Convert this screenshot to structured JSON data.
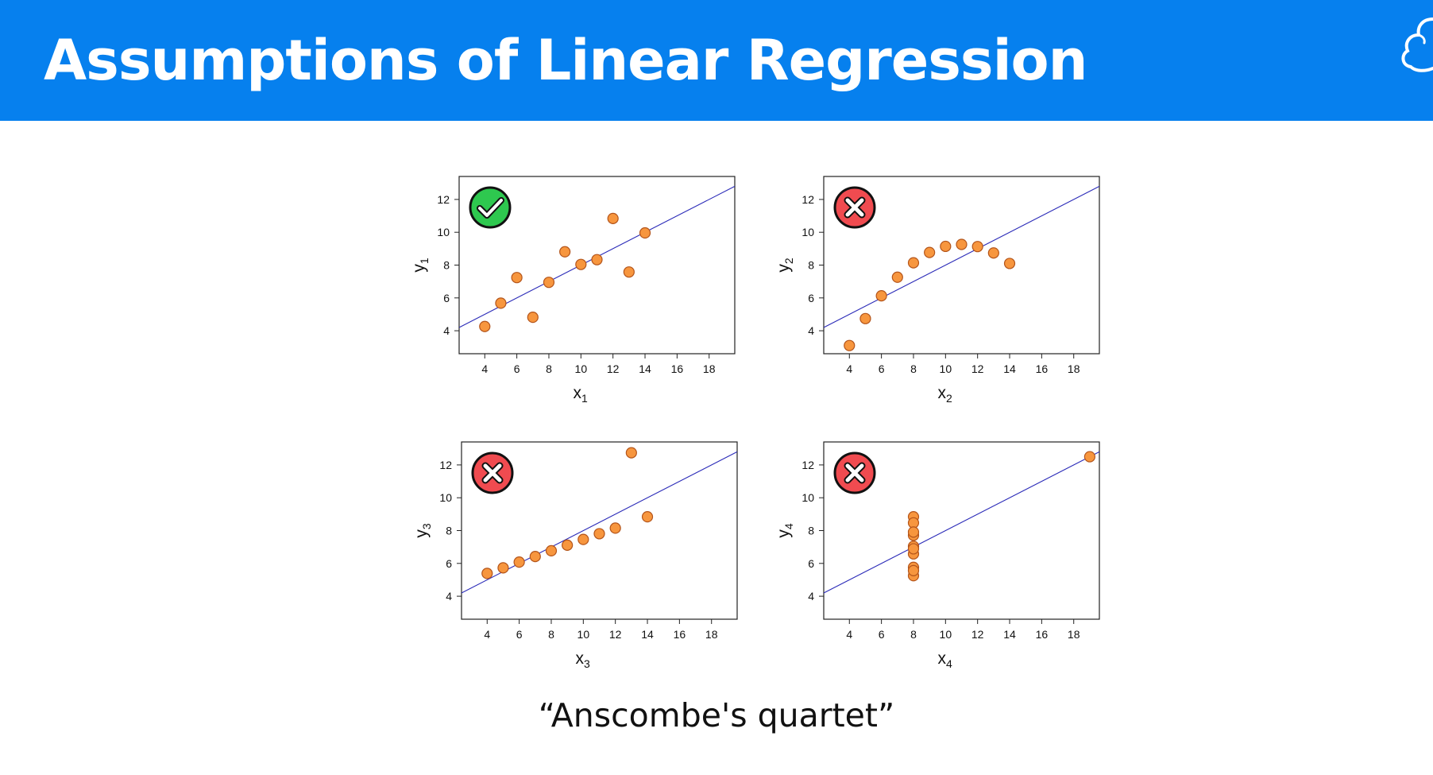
{
  "header": {
    "title": "Assumptions of Linear Regression",
    "background_color": "#0680ee",
    "logo_icon": "cloud-logo-icon"
  },
  "caption": "“Anscombe's quartet”",
  "colors": {
    "point_fill": "#f7963e",
    "point_stroke": "#b3541a",
    "fit_line": "#2b2bb8",
    "pass_badge": "#2ec84f",
    "fail_badge": "#f04b50"
  },
  "chart_data": [
    {
      "type": "scatter",
      "name": "plot-1",
      "xlabel": "x",
      "xlabel_sub": "1",
      "ylabel": "y",
      "ylabel_sub": "1",
      "xticks": [
        4,
        6,
        8,
        10,
        12,
        14,
        16,
        18
      ],
      "yticks": [
        4,
        6,
        8,
        10,
        12
      ],
      "xlim": [
        2.4,
        19.6
      ],
      "ylim": [
        2.6,
        13.4
      ],
      "fit_line": {
        "intercept": 3.0,
        "slope": 0.5
      },
      "badge": "check",
      "points": [
        [
          10,
          8.04
        ],
        [
          8,
          6.95
        ],
        [
          13,
          7.58
        ],
        [
          9,
          8.81
        ],
        [
          11,
          8.33
        ],
        [
          14,
          9.96
        ],
        [
          6,
          7.24
        ],
        [
          4,
          4.26
        ],
        [
          12,
          10.84
        ],
        [
          7,
          4.82
        ],
        [
          5,
          5.68
        ]
      ]
    },
    {
      "type": "scatter",
      "name": "plot-2",
      "xlabel": "x",
      "xlabel_sub": "2",
      "ylabel": "y",
      "ylabel_sub": "2",
      "xticks": [
        4,
        6,
        8,
        10,
        12,
        14,
        16,
        18
      ],
      "yticks": [
        4,
        6,
        8,
        10,
        12
      ],
      "xlim": [
        2.4,
        19.6
      ],
      "ylim": [
        2.6,
        13.4
      ],
      "fit_line": {
        "intercept": 3.0,
        "slope": 0.5
      },
      "badge": "cross",
      "points": [
        [
          10,
          9.14
        ],
        [
          8,
          8.14
        ],
        [
          13,
          8.74
        ],
        [
          9,
          8.77
        ],
        [
          11,
          9.26
        ],
        [
          14,
          8.1
        ],
        [
          6,
          6.13
        ],
        [
          4,
          3.1
        ],
        [
          12,
          9.13
        ],
        [
          7,
          7.26
        ],
        [
          5,
          4.74
        ]
      ]
    },
    {
      "type": "scatter",
      "name": "plot-3",
      "xlabel": "x",
      "xlabel_sub": "3",
      "ylabel": "y",
      "ylabel_sub": "3",
      "xticks": [
        4,
        6,
        8,
        10,
        12,
        14,
        16,
        18
      ],
      "yticks": [
        4,
        6,
        8,
        10,
        12
      ],
      "xlim": [
        2.4,
        19.6
      ],
      "ylim": [
        2.6,
        13.4
      ],
      "fit_line": {
        "intercept": 3.0,
        "slope": 0.5
      },
      "badge": "cross",
      "points": [
        [
          10,
          7.46
        ],
        [
          8,
          6.77
        ],
        [
          13,
          12.74
        ],
        [
          9,
          7.11
        ],
        [
          11,
          7.81
        ],
        [
          14,
          8.84
        ],
        [
          6,
          6.08
        ],
        [
          4,
          5.39
        ],
        [
          12,
          8.15
        ],
        [
          7,
          6.42
        ],
        [
          5,
          5.73
        ]
      ]
    },
    {
      "type": "scatter",
      "name": "plot-4",
      "xlabel": "x",
      "xlabel_sub": "4",
      "ylabel": "y",
      "ylabel_sub": "4",
      "xticks": [
        4,
        6,
        8,
        10,
        12,
        14,
        16,
        18
      ],
      "yticks": [
        4,
        6,
        8,
        10,
        12
      ],
      "xlim": [
        2.4,
        19.6
      ],
      "ylim": [
        2.6,
        13.4
      ],
      "fit_line": {
        "intercept": 3.0,
        "slope": 0.5
      },
      "badge": "cross",
      "points": [
        [
          8,
          6.58
        ],
        [
          8,
          5.76
        ],
        [
          8,
          7.71
        ],
        [
          8,
          8.84
        ],
        [
          8,
          8.47
        ],
        [
          8,
          7.04
        ],
        [
          8,
          5.25
        ],
        [
          19,
          12.5
        ],
        [
          8,
          5.56
        ],
        [
          8,
          7.91
        ],
        [
          8,
          6.89
        ]
      ]
    }
  ]
}
